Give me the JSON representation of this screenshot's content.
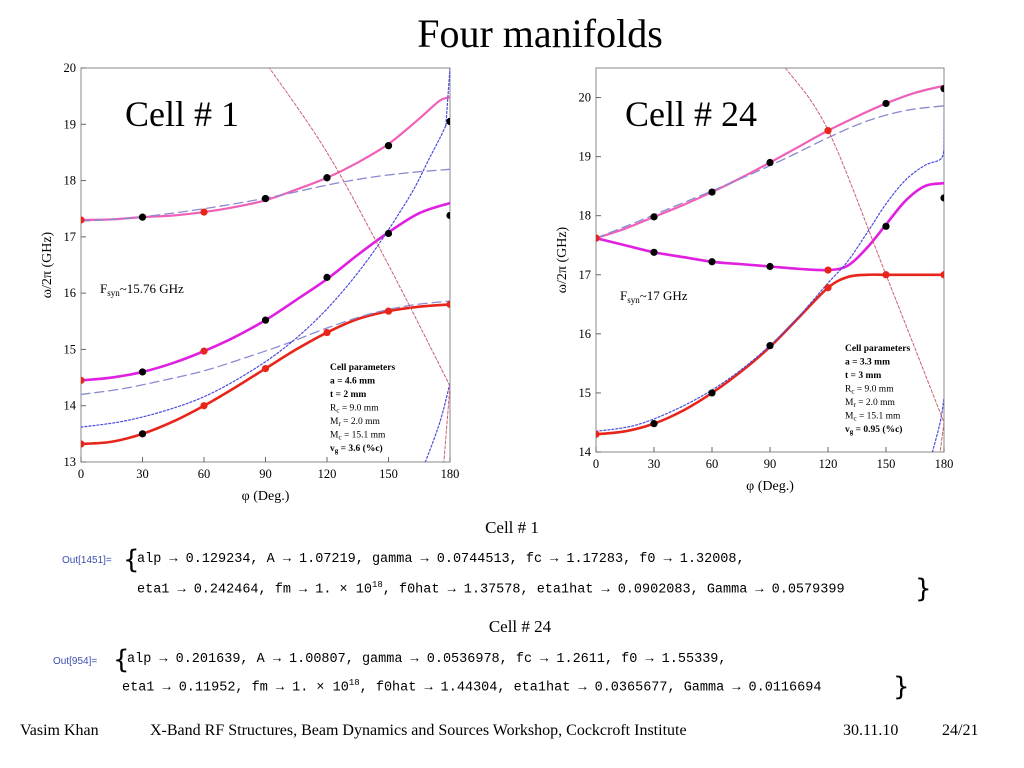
{
  "slide": {
    "title": "Four manifolds",
    "caption1": "Cell # 1",
    "caption2": "Cell # 24",
    "out1_label": "Out[1451]=",
    "out1_line1": "alp → 0.129234, A → 1.07219, gamma → 0.0744513, fc → 1.17283, f0 → 1.32008,",
    "out1_line2_a": "eta1 → 0.242464, fm → 1. × 10",
    "out1_line2_exp": "18",
    "out1_line2_b": ", f0hat → 1.37578, eta1hat → 0.0902083, Gamma → 0.0579399",
    "out2_label": "Out[954]=",
    "out2_line1": "alp → 0.201639, A → 1.00807, gamma → 0.0536978, fc → 1.2611, f0 → 1.55339,",
    "out2_line2_a": "eta1 → 0.11952, fm → 1. × 10",
    "out2_line2_exp": "18",
    "out2_line2_b": ", f0hat → 1.44304, eta1hat → 0.0365677, Gamma → 0.0116694",
    "footer": {
      "author": "Vasim Khan",
      "event": "X-Band RF Structures, Beam Dynamics and Sources Workshop, Cockcroft Institute",
      "date": "30.11.10",
      "page": "24/21"
    }
  },
  "colors": {
    "red": "#e8251a",
    "magenta": "#e020e0",
    "pink": "#f060b8",
    "dashed": "#8a8ad0",
    "dotted": "#4a4ae0",
    "lightline": "#cc6070",
    "black": "#000000"
  },
  "chart_data": [
    {
      "type": "line",
      "panel_title": "Cell # 1",
      "xlabel": "φ (Deg.)",
      "ylabel": "ω/2π (GHz)",
      "xlim": [
        0,
        180
      ],
      "ylim": [
        13,
        20
      ],
      "xticks": [
        "0",
        "30",
        "60",
        "90",
        "120",
        "150",
        "180"
      ],
      "yticks": [
        "13",
        "14",
        "15",
        "16",
        "17",
        "18",
        "19",
        "20"
      ],
      "fsyn_main": "F",
      "fsyn_sub": "syn",
      "fsyn_value": "~15.76 GHz",
      "params_title": "Cell parameters",
      "params": [
        {
          "label": "a = 4.6 mm",
          "bold": true
        },
        {
          "label": "t = 2 mm",
          "bold": true
        },
        {
          "main": "R",
          "sub": "c",
          "rest": " = 9.0 mm",
          "bold": false
        },
        {
          "main": "M",
          "sub": "r",
          "rest": " = 2.0 mm",
          "bold": false
        },
        {
          "main": "M",
          "sub": "c",
          "rest": " = 15.1 mm",
          "bold": false
        },
        {
          "main": "v",
          "sub": "g",
          "rest": " = 3.6 (%c)",
          "bold": true
        }
      ],
      "series": [
        {
          "style": "red",
          "x": [
            0,
            15,
            30,
            45,
            60,
            75,
            90,
            105,
            120,
            135,
            150,
            165,
            180
          ],
          "y": [
            13.32,
            13.36,
            13.5,
            13.72,
            14.0,
            14.32,
            14.66,
            15.0,
            15.3,
            15.54,
            15.68,
            15.76,
            15.8
          ]
        },
        {
          "style": "magenta",
          "x": [
            0,
            15,
            30,
            45,
            60,
            75,
            90,
            105,
            120,
            135,
            150,
            165,
            180
          ],
          "y": [
            14.45,
            14.5,
            14.6,
            14.76,
            14.97,
            15.22,
            15.52,
            15.88,
            16.25,
            16.68,
            17.08,
            17.42,
            17.6
          ]
        },
        {
          "style": "pink",
          "x": [
            0,
            15,
            30,
            45,
            60,
            75,
            90,
            105,
            120,
            135,
            150,
            165,
            175,
            180
          ],
          "y": [
            17.3,
            17.31,
            17.35,
            17.38,
            17.44,
            17.53,
            17.65,
            17.84,
            18.05,
            18.32,
            18.65,
            19.1,
            19.42,
            19.48
          ]
        },
        {
          "style": "dashed",
          "x": [
            0,
            20,
            40,
            60,
            80,
            100,
            120,
            140,
            160,
            180
          ],
          "y": [
            14.2,
            14.3,
            14.45,
            14.62,
            14.85,
            15.1,
            15.38,
            15.62,
            15.78,
            15.86
          ]
        },
        {
          "style": "dashed",
          "x": [
            0,
            20,
            40,
            60,
            80,
            100,
            120,
            140,
            160,
            180
          ],
          "y": [
            17.28,
            17.32,
            17.4,
            17.5,
            17.62,
            17.76,
            17.92,
            18.05,
            18.14,
            18.2
          ]
        },
        {
          "style": "dotted",
          "x": [
            0,
            20,
            40,
            60,
            80,
            100,
            120,
            140,
            160,
            170,
            175,
            178
          ],
          "y": [
            13.62,
            13.72,
            13.9,
            14.16,
            14.55,
            15.05,
            15.72,
            16.6,
            17.7,
            18.4,
            18.75,
            18.98
          ]
        },
        {
          "style": "dotted",
          "x": [
            178,
            179,
            180
          ],
          "y": [
            18.98,
            19.5,
            20.0
          ]
        },
        {
          "style": "dotted",
          "x": [
            168,
            175,
            180
          ],
          "y": [
            13.0,
            13.7,
            14.4
          ]
        },
        {
          "style": "lightline",
          "x": [
            90,
            120,
            150,
            180
          ],
          "y": [
            20.1,
            18.5,
            16.5,
            14.35
          ]
        },
        {
          "style": "lightline",
          "x": [
            180,
            177
          ],
          "y": [
            14.35,
            13.0
          ]
        }
      ],
      "points": [
        {
          "style": "red",
          "x": [
            0,
            60,
            90,
            120,
            150,
            180
          ],
          "y": [
            13.32,
            14.0,
            14.66,
            15.3,
            15.68,
            15.8
          ]
        },
        {
          "style": "magenta",
          "x": [
            0,
            60
          ],
          "y": [
            14.45,
            14.97
          ]
        },
        {
          "style": "pink",
          "x": [
            0,
            60
          ],
          "y": [
            17.3,
            17.44
          ]
        },
        {
          "style": "black",
          "x": [
            30,
            90,
            120,
            150,
            180,
            30,
            90,
            120,
            150,
            180,
            30,
            90,
            120,
            150,
            180
          ],
          "y": [
            13.5,
            15.52,
            16.28,
            17.06,
            17.38,
            14.6,
            17.68,
            18.05,
            18.62,
            19.05,
            17.35,
            17.68,
            18.05,
            18.62,
            19.05
          ]
        }
      ]
    },
    {
      "type": "line",
      "panel_title": "Cell # 24",
      "xlabel": "φ (Deg.)",
      "ylabel": "ω/2π (GHz)",
      "xlim": [
        0,
        180
      ],
      "ylim": [
        14,
        20.5
      ],
      "xticks": [
        "0",
        "30",
        "60",
        "90",
        "120",
        "150",
        "180"
      ],
      "yticks": [
        "14",
        "15",
        "16",
        "17",
        "18",
        "19",
        "20"
      ],
      "fsyn_main": "F",
      "fsyn_sub": "syn",
      "fsyn_value": "~17 GHz",
      "params_title": "Cell parameters",
      "params": [
        {
          "label": "a = 3.3 mm",
          "bold": true
        },
        {
          "label": "t = 3 mm",
          "bold": true
        },
        {
          "main": "R",
          "sub": "c",
          "rest": " = 9.0 mm",
          "bold": false
        },
        {
          "main": "M",
          "sub": "r",
          "rest": " = 2.0 mm",
          "bold": false
        },
        {
          "main": "M",
          "sub": "c",
          "rest": " = 15.1 mm",
          "bold": false
        },
        {
          "main": "v",
          "sub": "g",
          "rest": " = 0.95 (%c)",
          "bold": true
        }
      ],
      "series": [
        {
          "style": "red",
          "x": [
            0,
            15,
            30,
            45,
            60,
            75,
            90,
            105,
            120,
            130,
            140,
            150,
            165,
            180
          ],
          "y": [
            14.3,
            14.35,
            14.48,
            14.7,
            15.0,
            15.36,
            15.78,
            16.28,
            16.78,
            16.96,
            17.0,
            17.0,
            17.0,
            17.0
          ]
        },
        {
          "style": "magenta",
          "x": [
            0,
            15,
            30,
            45,
            60,
            75,
            90,
            105,
            120,
            130,
            140,
            150,
            160,
            170,
            180
          ],
          "y": [
            17.62,
            17.5,
            17.38,
            17.3,
            17.22,
            17.18,
            17.14,
            17.1,
            17.08,
            17.15,
            17.45,
            17.85,
            18.25,
            18.5,
            18.55
          ]
        },
        {
          "style": "pink",
          "x": [
            0,
            15,
            30,
            45,
            60,
            75,
            90,
            105,
            120,
            135,
            150,
            165,
            180
          ],
          "y": [
            17.62,
            17.78,
            17.98,
            18.18,
            18.4,
            18.64,
            18.9,
            19.17,
            19.44,
            19.68,
            19.9,
            20.08,
            20.2
          ]
        },
        {
          "style": "dashed",
          "x": [
            0,
            20,
            40,
            60,
            80,
            100,
            120,
            140,
            160,
            180
          ],
          "y": [
            17.62,
            17.88,
            18.15,
            18.42,
            18.7,
            19.0,
            19.32,
            19.6,
            19.78,
            19.86
          ]
        },
        {
          "style": "dotted",
          "x": [
            0,
            20,
            40,
            60,
            80,
            100,
            120,
            130,
            140,
            150,
            160,
            170,
            178,
            180
          ],
          "y": [
            14.35,
            14.45,
            14.7,
            15.05,
            15.52,
            16.12,
            16.86,
            17.22,
            17.7,
            18.2,
            18.6,
            18.85,
            18.95,
            19.1
          ]
        },
        {
          "style": "dotted",
          "x": [
            180,
            180.5
          ],
          "y": [
            19.1,
            20.5
          ]
        },
        {
          "style": "dotted",
          "x": [
            174,
            178,
            180
          ],
          "y": [
            14.0,
            14.5,
            14.9
          ]
        },
        {
          "style": "lightline",
          "x": [
            98,
            120,
            150,
            180
          ],
          "y": [
            20.5,
            19.45,
            17.0,
            14.5
          ]
        },
        {
          "style": "lightline",
          "x": [
            180,
            178
          ],
          "y": [
            14.5,
            14.0
          ]
        }
      ],
      "points": [
        {
          "style": "red",
          "x": [
            0,
            120,
            150,
            180
          ],
          "y": [
            14.3,
            16.78,
            17.0,
            17.0
          ]
        },
        {
          "style": "magenta",
          "x": [
            0,
            120
          ],
          "y": [
            17.62,
            17.08
          ]
        },
        {
          "style": "pink",
          "x": [
            0,
            120
          ],
          "y": [
            17.62,
            19.44
          ]
        },
        {
          "style": "black",
          "x": [
            30,
            60,
            90,
            30,
            60,
            90,
            150,
            180,
            30,
            60,
            90,
            150,
            180
          ],
          "y": [
            14.48,
            15.0,
            15.8,
            17.38,
            17.22,
            17.14,
            17.82,
            18.3,
            17.98,
            18.4,
            18.9,
            19.9,
            20.15
          ]
        }
      ]
    }
  ]
}
